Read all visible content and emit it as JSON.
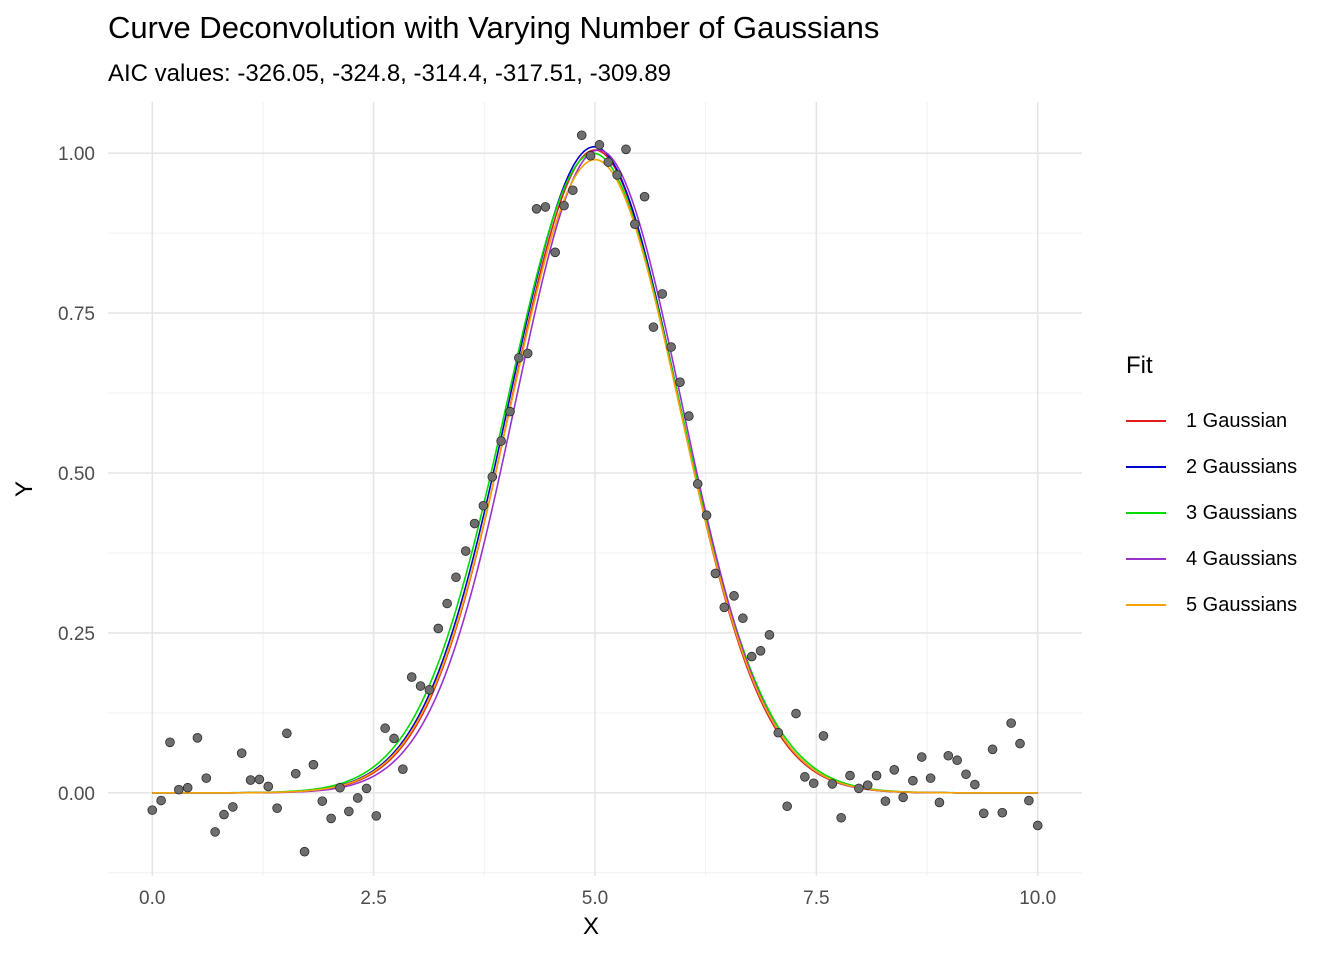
{
  "chart_data": {
    "type": "scatter",
    "title": "Curve Deconvolution with Varying Number of Gaussians",
    "subtitle": "AIC values: -326.05, -324.8, -314.4, -317.51, -309.89",
    "xlabel": "X",
    "ylabel": "Y",
    "xlim": [
      -0.5,
      10.5
    ],
    "ylim": [
      -0.13,
      1.08
    ],
    "x_ticks": [
      "0.0",
      "2.5",
      "5.0",
      "7.5",
      "10.0"
    ],
    "x_tick_values": [
      0,
      2.5,
      5,
      7.5,
      10
    ],
    "y_ticks": [
      "0.00",
      "0.25",
      "0.50",
      "0.75",
      "1.00"
    ],
    "y_tick_values": [
      0,
      0.25,
      0.5,
      0.75,
      1
    ],
    "grid": true,
    "legend_position": "right",
    "legend_title": "Fit",
    "points": {
      "x": [
        0.0,
        0.1,
        0.2,
        0.3,
        0.4,
        0.51,
        0.61,
        0.71,
        0.81,
        0.91,
        1.01,
        1.11,
        1.21,
        1.31,
        1.41,
        1.52,
        1.62,
        1.72,
        1.82,
        1.92,
        2.02,
        2.12,
        2.22,
        2.32,
        2.42,
        2.53,
        2.63,
        2.73,
        2.83,
        2.93,
        3.03,
        3.13,
        3.23,
        3.33,
        3.43,
        3.54,
        3.64,
        3.74,
        3.84,
        3.94,
        4.04,
        4.14,
        4.24,
        4.34,
        4.44,
        4.55,
        4.65,
        4.75,
        4.85,
        4.95,
        5.05,
        5.15,
        5.25,
        5.35,
        5.45,
        5.56,
        5.66,
        5.76,
        5.86,
        5.96,
        6.06,
        6.16,
        6.26,
        6.36,
        6.46,
        6.57,
        6.67,
        6.77,
        6.87,
        6.97,
        7.07,
        7.17,
        7.27,
        7.37,
        7.47,
        7.58,
        7.68,
        7.78,
        7.88,
        7.98,
        8.08,
        8.18,
        8.28,
        8.38,
        8.48,
        8.59,
        8.69,
        8.79,
        8.89,
        8.99,
        9.09,
        9.19,
        9.29,
        9.39,
        9.49,
        9.6,
        9.7,
        9.8,
        9.9,
        10.0
      ],
      "y": [
        -0.027,
        -0.012,
        0.079,
        0.005,
        0.008,
        0.086,
        0.023,
        -0.061,
        -0.034,
        -0.022,
        0.062,
        0.02,
        0.021,
        0.01,
        -0.024,
        0.093,
        0.03,
        -0.092,
        0.044,
        -0.013,
        -0.04,
        0.008,
        -0.029,
        -0.008,
        0.007,
        -0.036,
        0.101,
        0.085,
        0.037,
        0.181,
        0.167,
        0.161,
        0.257,
        0.296,
        0.337,
        0.378,
        0.421,
        0.449,
        0.494,
        0.55,
        0.596,
        0.68,
        0.687,
        0.913,
        0.916,
        0.845,
        0.918,
        0.942,
        1.028,
        0.996,
        1.013,
        0.986,
        0.966,
        1.006,
        0.889,
        0.932,
        0.728,
        0.78,
        0.697,
        0.642,
        0.589,
        0.483,
        0.434,
        0.343,
        0.29,
        0.308,
        0.273,
        0.213,
        0.222,
        0.247,
        0.094,
        -0.021,
        0.124,
        0.025,
        0.015,
        0.089,
        0.014,
        -0.039,
        0.027,
        0.007,
        0.012,
        0.027,
        -0.013,
        0.036,
        -0.007,
        0.019,
        0.056,
        0.023,
        -0.015,
        0.058,
        0.051,
        0.029,
        0.013,
        -0.032,
        0.068,
        -0.031,
        0.109,
        0.077,
        -0.012,
        -0.051
      ]
    },
    "series": [
      {
        "name": "1 Gaussian",
        "color": "#e41a1c",
        "mu": 5.0,
        "sigma": 0.95,
        "amp": 1.005
      },
      {
        "name": "2 Gaussians",
        "color": "#0000cc",
        "mu": 4.99,
        "sigma": 0.96,
        "amp": 1.01
      },
      {
        "name": "3 Gaussians",
        "color": "#00dd00",
        "mu": 4.98,
        "sigma": 0.98,
        "amp": 1.0
      },
      {
        "name": "4 Gaussians",
        "color": "#9932cc",
        "mu": 5.04,
        "sigma": 0.94,
        "amp": 1.005
      },
      {
        "name": "5 Gaussians",
        "color": "#f5a300",
        "mu": 5.0,
        "sigma": 0.96,
        "amp": 0.99
      }
    ]
  }
}
